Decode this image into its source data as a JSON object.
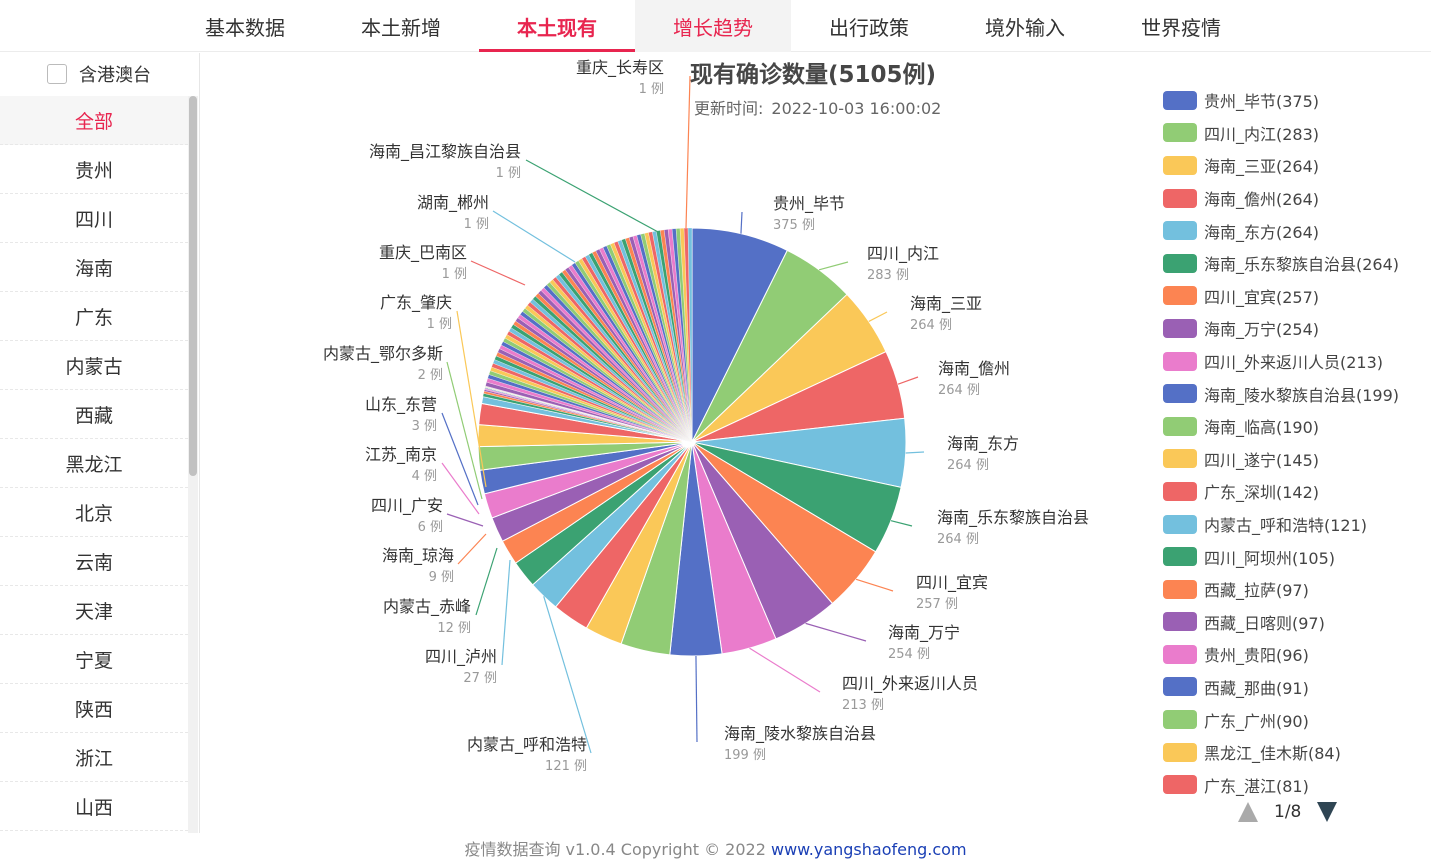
{
  "tabs": [
    "基本数据",
    "本土新增",
    "本土现有",
    "增长趋势",
    "出行政策",
    "境外输入",
    "世界疫情"
  ],
  "sidebar": {
    "hk_label": "含港澳台",
    "regions": [
      "全部",
      "贵州",
      "四川",
      "海南",
      "广东",
      "内蒙古",
      "西藏",
      "黑龙江",
      "北京",
      "云南",
      "天津",
      "宁夏",
      "陕西",
      "浙江",
      "山西"
    ]
  },
  "chart": {
    "title": "现有确诊数量(5105例)",
    "update_label": "更新时间:",
    "update_time": "2022-10-03 16:00:02",
    "unit": "例"
  },
  "chart_data": {
    "type": "pie",
    "title": "现有确诊数量(5105例)",
    "total": 5105,
    "colors": [
      "#5470c6",
      "#91cc75",
      "#fac858",
      "#ee6666",
      "#73c0de",
      "#3ba272",
      "#fc8452",
      "#9a60b4",
      "#ea7ccc"
    ],
    "slices": [
      {
        "name": "贵州_毕节",
        "value": 375
      },
      {
        "name": "四川_内江",
        "value": 283
      },
      {
        "name": "海南_三亚",
        "value": 264
      },
      {
        "name": "海南_儋州",
        "value": 264
      },
      {
        "name": "海南_东方",
        "value": 264
      },
      {
        "name": "海南_乐东黎族自治县",
        "value": 264
      },
      {
        "name": "四川_宜宾",
        "value": 257
      },
      {
        "name": "海南_万宁",
        "value": 254
      },
      {
        "name": "四川_外来返川人员",
        "value": 213
      },
      {
        "name": "海南_陵水黎族自治县",
        "value": 199
      },
      {
        "name": "海南_临高",
        "value": 190
      },
      {
        "name": "四川_遂宁",
        "value": 145
      },
      {
        "name": "广东_深圳",
        "value": 142
      },
      {
        "name": "内蒙古_呼和浩特",
        "value": 121
      },
      {
        "name": "四川_阿坝州",
        "value": 105
      },
      {
        "name": "西藏_拉萨",
        "value": 97
      },
      {
        "name": "西藏_日喀则",
        "value": 97
      },
      {
        "name": "贵州_贵阳",
        "value": 96
      },
      {
        "name": "西藏_那曲",
        "value": 91
      },
      {
        "name": "广东_广州",
        "value": 90
      },
      {
        "name": "黑龙江_佳木斯",
        "value": 84
      },
      {
        "name": "广东_湛江",
        "value": 81
      },
      {
        "name": "四川_泸州",
        "value": 27
      },
      {
        "name": "内蒙古_赤峰",
        "value": 12
      },
      {
        "name": "海南_琼海",
        "value": 9
      },
      {
        "name": "四川_广安",
        "value": 6
      },
      {
        "name": "江苏_南京",
        "value": 4
      },
      {
        "name": "山东_东营",
        "value": 3
      },
      {
        "name": "内蒙古_鄂尔多斯",
        "value": 2
      },
      {
        "name": "广东_肇庆",
        "value": 1
      },
      {
        "name": "重庆_巴南区",
        "value": 1
      },
      {
        "name": "湖南_郴州",
        "value": 1
      },
      {
        "name": "海南_昌江黎族自治县",
        "value": 1
      },
      {
        "name": "重庆_长寿区",
        "value": 1
      }
    ]
  },
  "legend": {
    "page": "1/8",
    "items": [
      "贵州_毕节(375)",
      "四川_内江(283)",
      "海南_三亚(264)",
      "海南_儋州(264)",
      "海南_东方(264)",
      "海南_乐东黎族自治县(264)",
      "四川_宜宾(257)",
      "海南_万宁(254)",
      "四川_外来返川人员(213)",
      "海南_陵水黎族自治县(199)",
      "海南_临高(190)",
      "四川_遂宁(145)",
      "广东_深圳(142)",
      "内蒙古_呼和浩特(121)",
      "四川_阿坝州(105)",
      "西藏_拉萨(97)",
      "西藏_日喀则(97)",
      "贵州_贵阳(96)",
      "西藏_那曲(91)",
      "广东_广州(90)",
      "黑龙江_佳木斯(84)",
      "广东_湛江(81)"
    ]
  },
  "footer": {
    "text": "疫情数据查询 v1.0.4 Copyright © 2022",
    "link": "www.yangshaofeng.com"
  }
}
